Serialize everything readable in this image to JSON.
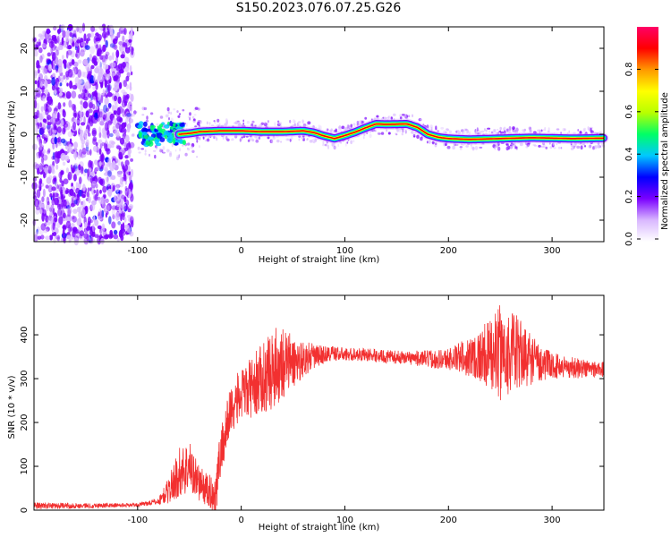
{
  "figure": {
    "title": "S150.2023.076.07.25.G26"
  },
  "chart_data": [
    {
      "type": "heatmap",
      "xlabel": "Height of straight line (km)",
      "ylabel": "Frequency (Hz)",
      "xlim": [
        -200,
        350
      ],
      "ylim": [
        -25,
        25
      ],
      "x_ticks": [
        -100,
        0,
        100,
        200,
        300
      ],
      "y_ticks": [
        -20,
        -10,
        0,
        10,
        20
      ],
      "colorbar": {
        "label": "Normalized spectral amplitude",
        "range": [
          0,
          1
        ],
        "ticks": [
          0.0,
          0.2,
          0.4,
          0.6,
          0.8
        ],
        "tick_labels": [
          "0.0",
          "0.2",
          "0.4",
          "0.6",
          "0.8"
        ],
        "colormap": [
          "#ffffff",
          "#d9b8ff",
          "#7a00ff",
          "#0000ff",
          "#00c8ff",
          "#00ff66",
          "#b8ff00",
          "#ffff00",
          "#ff9900",
          "#ff0000",
          "#ff0066"
        ]
      },
      "ridge": {
        "name": "",
        "x": [
          -100,
          -80,
          -60,
          -50,
          -40,
          -20,
          0,
          20,
          40,
          60,
          70,
          80,
          90,
          100,
          110,
          120,
          130,
          140,
          160,
          170,
          180,
          190,
          200,
          220,
          250,
          280,
          300,
          320,
          350
        ],
        "y": [
          0.5,
          0.3,
          0.0,
          0.2,
          0.6,
          0.8,
          0.8,
          0.6,
          0.6,
          0.8,
          0.4,
          -0.4,
          -1.0,
          -0.3,
          0.5,
          1.5,
          2.4,
          2.3,
          2.4,
          1.6,
          0.0,
          -0.7,
          -1.0,
          -1.2,
          -1.0,
          -0.8,
          -0.9,
          -1.0,
          -0.9
        ]
      }
    },
    {
      "type": "line",
      "xlabel": "Height of straight line (km)",
      "ylabel": "SNR (10 * v/v)",
      "xlim": [
        -200,
        350
      ],
      "ylim": [
        0,
        490
      ],
      "x_ticks": [
        -100,
        0,
        100,
        200,
        300
      ],
      "y_ticks": [
        0,
        100,
        200,
        300,
        400
      ],
      "color": "#f23030",
      "series": [
        {
          "name": "",
          "x": [
            -200,
            -150,
            -100,
            -80,
            -70,
            -60,
            -50,
            -40,
            -30,
            -25,
            -20,
            -15,
            -10,
            -5,
            0,
            10,
            20,
            30,
            40,
            50,
            60,
            70,
            80,
            90,
            100,
            120,
            140,
            160,
            180,
            200,
            220,
            240,
            250,
            260,
            270,
            280,
            290,
            300,
            320,
            340,
            350
          ],
          "y": [
            10,
            10,
            12,
            20,
            45,
            85,
            100,
            60,
            40,
            35,
            130,
            180,
            230,
            250,
            260,
            280,
            300,
            320,
            340,
            335,
            345,
            350,
            355,
            358,
            355,
            355,
            350,
            348,
            345,
            345,
            350,
            355,
            360,
            360,
            355,
            345,
            335,
            330,
            325,
            322,
            320
          ],
          "amplitude": [
            8,
            6,
            4,
            8,
            30,
            60,
            60,
            40,
            40,
            50,
            60,
            60,
            60,
            60,
            60,
            70,
            80,
            90,
            90,
            60,
            40,
            30,
            20,
            18,
            15,
            15,
            15,
            15,
            20,
            25,
            45,
            80,
            110,
            100,
            80,
            60,
            40,
            30,
            25,
            20,
            20
          ]
        }
      ]
    }
  ]
}
